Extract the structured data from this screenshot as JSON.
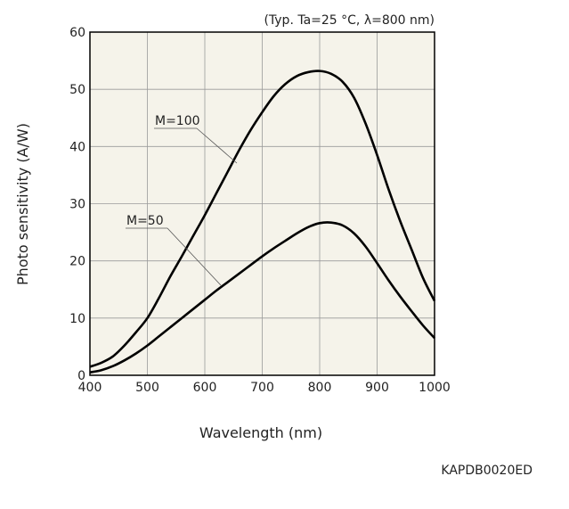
{
  "chart_data": {
    "type": "line",
    "condition": "(Typ. Ta=25 °C, λ=800 nm)",
    "xlabel": "Wavelength (nm)",
    "ylabel": "Photo sensitivity (A/W)",
    "xlim": [
      400,
      1000
    ],
    "ylim": [
      0,
      60
    ],
    "grid": true,
    "x_ticks": [
      400,
      500,
      600,
      700,
      800,
      900,
      1000
    ],
    "y_ticks": [
      0,
      10,
      20,
      30,
      40,
      50,
      60
    ],
    "series": [
      {
        "name": "M=100",
        "x": [
          400,
          420,
          440,
          460,
          480,
          500,
          520,
          540,
          560,
          580,
          600,
          620,
          640,
          660,
          680,
          700,
          720,
          740,
          760,
          780,
          800,
          820,
          840,
          860,
          880,
          900,
          920,
          940,
          960,
          980,
          1000
        ],
        "values": [
          1.5,
          2.2,
          3.3,
          5.2,
          7.5,
          10.0,
          13.5,
          17.3,
          20.8,
          24.4,
          28.0,
          31.8,
          35.6,
          39.4,
          42.9,
          46.0,
          48.8,
          50.9,
          52.3,
          53.0,
          53.2,
          52.7,
          51.3,
          48.5,
          44.0,
          38.5,
          32.5,
          27.0,
          22.0,
          17.0,
          13.0
        ]
      },
      {
        "name": "M=50",
        "x": [
          400,
          420,
          440,
          460,
          480,
          500,
          520,
          540,
          560,
          580,
          600,
          620,
          640,
          660,
          680,
          700,
          720,
          740,
          760,
          780,
          800,
          820,
          840,
          860,
          880,
          900,
          920,
          940,
          960,
          980,
          1000
        ],
        "values": [
          0.5,
          0.9,
          1.6,
          2.6,
          3.8,
          5.2,
          6.8,
          8.4,
          10.0,
          11.6,
          13.2,
          14.8,
          16.3,
          17.8,
          19.3,
          20.8,
          22.2,
          23.5,
          24.8,
          25.9,
          26.6,
          26.7,
          26.2,
          24.8,
          22.5,
          19.6,
          16.6,
          13.8,
          11.2,
          8.7,
          6.5
        ]
      }
    ]
  },
  "code": "KAPDB0020ED"
}
